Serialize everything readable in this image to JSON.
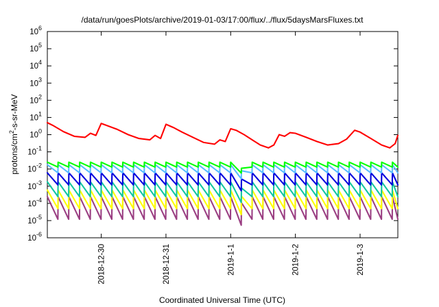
{
  "chart_data": {
    "type": "line",
    "title": "/data/run/goesPlots/archive/2019-01-03/17:00/flux/../flux/5daysMarsFluxes.txt",
    "xlabel": "Coordinated Universal Time (UTC)",
    "ylabel": "protons/cm²-s-sr-MeV",
    "ylabel_base": "protons/cm",
    "ylabel_sup": "2",
    "ylabel_rest": "-s-sr-MeV",
    "y_scale": "log",
    "ylim": [
      1e-06,
      1000000.0
    ],
    "y_ticks": [
      {
        "base": "10",
        "exp": "-6",
        "value": 1e-06
      },
      {
        "base": "10",
        "exp": "-5",
        "value": 1e-05
      },
      {
        "base": "10",
        "exp": "-4",
        "value": 0.0001
      },
      {
        "base": "10",
        "exp": "-3",
        "value": 0.001
      },
      {
        "base": "10",
        "exp": "-2",
        "value": 0.01
      },
      {
        "base": "10",
        "exp": "-1",
        "value": 0.1
      },
      {
        "base": "10",
        "exp": "0",
        "value": 1
      },
      {
        "base": "10",
        "exp": "1",
        "value": 10
      },
      {
        "base": "10",
        "exp": "2",
        "value": 100
      },
      {
        "base": "10",
        "exp": "3",
        "value": 1000
      },
      {
        "base": "10",
        "exp": "4",
        "value": 10000
      },
      {
        "base": "10",
        "exp": "5",
        "value": 100000
      },
      {
        "base": "10",
        "exp": "6",
        "value": 1000000
      }
    ],
    "x_range": [
      "2018-12-29T04:00",
      "2019-01-03T14:00"
    ],
    "x_ticks": [
      {
        "label": "2018-12-30",
        "date": "2018-12-30T00:00"
      },
      {
        "label": "2018-12-31",
        "date": "2018-12-31T00:00"
      },
      {
        "label": "2019-1-1",
        "date": "2019-01-01T00:00"
      },
      {
        "label": "2019-1-2",
        "date": "2019-01-02T00:00"
      },
      {
        "label": "2019-1-3",
        "date": "2019-01-03T00:00"
      }
    ],
    "grid": false,
    "legend": "none",
    "series": [
      {
        "color": "#ff0000",
        "x": [
          "2018-12-29T04:00",
          "2018-12-29T06:00",
          "2018-12-29T10:00",
          "2018-12-29T14:00",
          "2018-12-29T18:00",
          "2018-12-29T20:00",
          "2018-12-29T22:00",
          "2018-12-30T00:00",
          "2018-12-30T03:00",
          "2018-12-30T06:00",
          "2018-12-30T10:00",
          "2018-12-30T14:00",
          "2018-12-30T18:00",
          "2018-12-30T20:00",
          "2018-12-30T22:00",
          "2018-12-31T00:00",
          "2018-12-31T03:00",
          "2018-12-31T06:00",
          "2018-12-31T10:00",
          "2018-12-31T14:00",
          "2018-12-31T18:00",
          "2018-12-31T20:00",
          "2018-12-31T22:00",
          "2019-01-01T00:00",
          "2019-01-01T02:00",
          "2019-01-01T05:00",
          "2019-01-01T08:00",
          "2019-01-01T11:00",
          "2019-01-01T14:00",
          "2019-01-01T16:00",
          "2019-01-01T18:00",
          "2019-01-01T20:00",
          "2019-01-01T22:00",
          "2019-01-02T00:00",
          "2019-01-02T04:00",
          "2019-01-02T08:00",
          "2019-01-02T12:00",
          "2019-01-02T16:00",
          "2019-01-02T19:00",
          "2019-01-02T22:00",
          "2019-01-03T00:00",
          "2019-01-03T04:00",
          "2019-01-03T08:00",
          "2019-01-03T11:00",
          "2019-01-03T13:00",
          "2019-01-03T14:00"
        ],
        "y": [
          5.0,
          3.5,
          1.5,
          0.8,
          0.7,
          1.2,
          0.9,
          4.5,
          3.0,
          2.0,
          1.0,
          0.6,
          0.5,
          0.9,
          0.6,
          4.0,
          2.5,
          1.4,
          0.7,
          0.35,
          0.28,
          0.5,
          0.4,
          2.2,
          1.8,
          1.0,
          0.5,
          0.25,
          0.17,
          0.25,
          1.0,
          0.8,
          1.3,
          1.2,
          0.7,
          0.4,
          0.25,
          0.3,
          0.55,
          1.8,
          1.4,
          0.6,
          0.25,
          0.17,
          0.3,
          0.9
        ]
      },
      {
        "color": "#00ff00",
        "pattern": "periodic",
        "period_hours": 4,
        "peak": 0.025,
        "trough": 0.013
      },
      {
        "color": "#57bbff",
        "pattern": "periodic",
        "period_hours": 4,
        "peak": 0.018,
        "trough": 0.006
      },
      {
        "color": "#0000dd",
        "pattern": "periodic",
        "period_hours": 4,
        "peak": 0.006,
        "trough": 0.0012
      },
      {
        "color": "#0fc6a0",
        "pattern": "periodic",
        "period_hours": 4,
        "peak": 0.0018,
        "trough": 0.00025
      },
      {
        "color": "#ffff00",
        "pattern": "periodic",
        "period_hours": 4,
        "peak": 0.0006,
        "trough": 5e-05
      },
      {
        "color": "#9a3e82",
        "pattern": "periodic",
        "period_hours": 4,
        "peak": 0.00025,
        "trough": 1.2e-05
      }
    ],
    "dip": {
      "start": "2019-01-01T00:00",
      "min": "2019-01-01T05:00",
      "end": "2019-01-01T07:00",
      "min_factor": 0.3
    }
  }
}
